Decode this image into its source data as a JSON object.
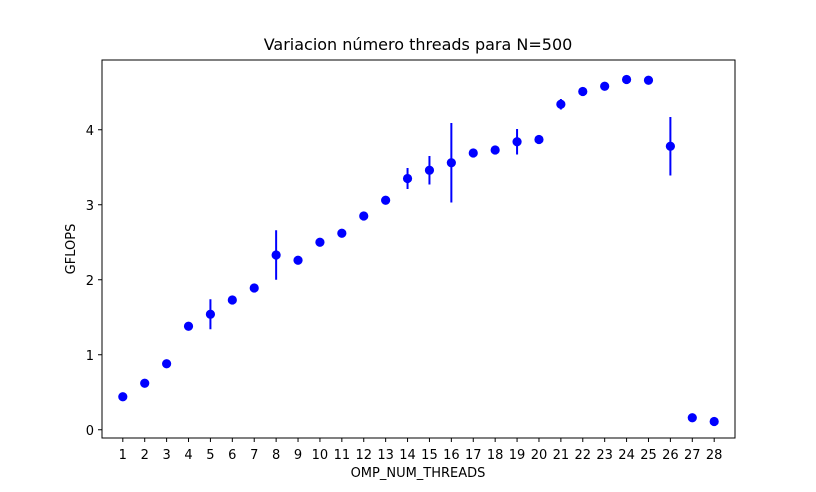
{
  "chart_data": {
    "type": "scatter",
    "title": "Variacion número threads para N=500",
    "xlabel": "OMP_NUM_THREADS",
    "ylabel": "GFLOPS",
    "xlim": [
      0.05,
      28.95
    ],
    "ylim": [
      -0.11,
      4.93
    ],
    "xticks": [
      1,
      2,
      3,
      4,
      5,
      6,
      7,
      8,
      9,
      10,
      11,
      12,
      13,
      14,
      15,
      16,
      17,
      18,
      19,
      20,
      21,
      22,
      23,
      24,
      25,
      26,
      27,
      28
    ],
    "yticks": [
      0,
      1,
      2,
      3,
      4
    ],
    "grid": false,
    "marker_color": "#0000ff",
    "series": [
      {
        "x": [
          1,
          2,
          3,
          4,
          5,
          6,
          7,
          8,
          9,
          10,
          11,
          12,
          13,
          14,
          15,
          16,
          17,
          18,
          19,
          20,
          21,
          22,
          23,
          24,
          25,
          26,
          27,
          28
        ],
        "y": [
          0.44,
          0.62,
          0.88,
          1.38,
          1.54,
          1.73,
          1.89,
          2.33,
          2.26,
          2.5,
          2.62,
          2.85,
          3.06,
          3.35,
          3.46,
          3.56,
          3.69,
          3.73,
          3.84,
          3.87,
          4.34,
          4.51,
          4.58,
          4.67,
          4.66,
          3.78,
          0.16,
          0.11
        ],
        "yerr": [
          0,
          0,
          0,
          0,
          0.2,
          0,
          0,
          0.33,
          0,
          0,
          0,
          0,
          0,
          0.14,
          0.19,
          0.53,
          0,
          0.06,
          0.17,
          0,
          0.07,
          0,
          0,
          0,
          0,
          0.39,
          0.04,
          0
        ]
      }
    ]
  }
}
